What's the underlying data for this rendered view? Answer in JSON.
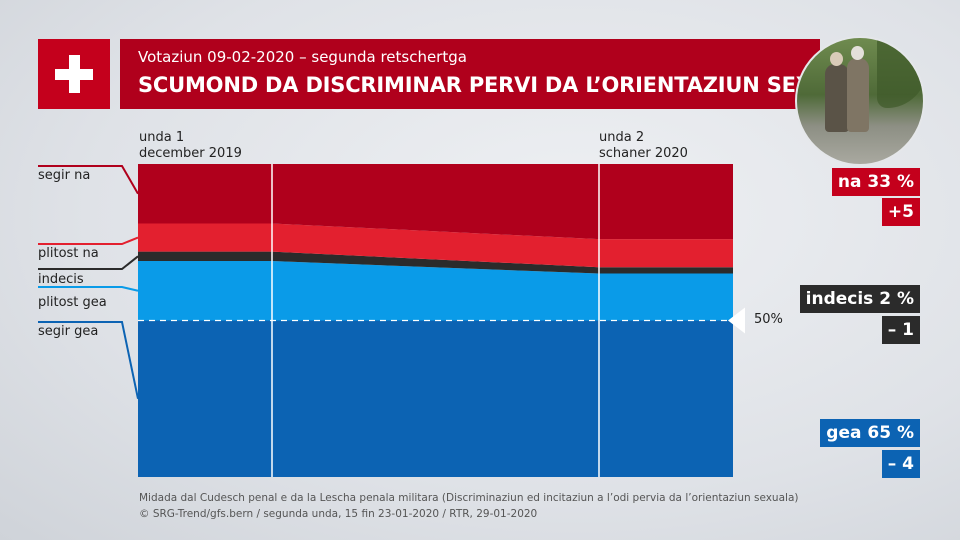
{
  "header": {
    "subtitle": "Votaziun 09-02-2020 – segunda retschertga",
    "title": "SCUMOND DA DISCRIMINAR PERVI DA L’ORIENTAZIUN SEXUALA"
  },
  "chart_data": {
    "type": "area",
    "stacked": true,
    "x": [
      "unda 1 december 2019",
      "unda 2 schaner 2020"
    ],
    "waves": [
      {
        "line1": "unda 1",
        "line2": "december 2019"
      },
      {
        "line1": "unda 2",
        "line2": "schaner 2020"
      }
    ],
    "ylim": [
      0,
      100
    ],
    "reference_line": {
      "value": 50,
      "label": "50%"
    },
    "series": [
      {
        "name": "segir gea",
        "values": [
          50,
          50
        ],
        "color": "#0c63b3"
      },
      {
        "name": "plitost gea",
        "values": [
          19,
          15
        ],
        "color": "#0a9be8"
      },
      {
        "name": "indecis",
        "values": [
          3,
          2
        ],
        "color": "#2b2b2b"
      },
      {
        "name": "plitost na",
        "values": [
          9,
          9
        ],
        "color": "#e3202f"
      },
      {
        "name": "segir na",
        "values": [
          19,
          24
        ],
        "color": "#b0001c"
      }
    ],
    "category_labels": [
      "segir na",
      "plitost na",
      "indecis",
      "plitost gea",
      "segir gea"
    ]
  },
  "results": [
    {
      "label": "na 33 %",
      "change": "+5",
      "style": "red"
    },
    {
      "label": "indecis 2 %",
      "change": "– 1",
      "style": "dark"
    },
    {
      "label": "gea 65 %",
      "change": "– 4",
      "style": "blue"
    }
  ],
  "footer": {
    "line1": "Midada dal Cudesch penal e da la Lescha penala militara (Discriminaziun ed incitaziun a l’odi pervia da l’orientaziun sexuala)",
    "line2": "© SRG-Trend/gfs.bern  /  segunda unda, 15 fin 23-01-2020  / RTR, 29-01-2020"
  },
  "colors": {
    "brand_red": "#b0001c",
    "light_red": "#e3202f",
    "dark": "#2b2b2b",
    "light_blue": "#0a9be8",
    "dark_blue": "#0c63b3"
  }
}
